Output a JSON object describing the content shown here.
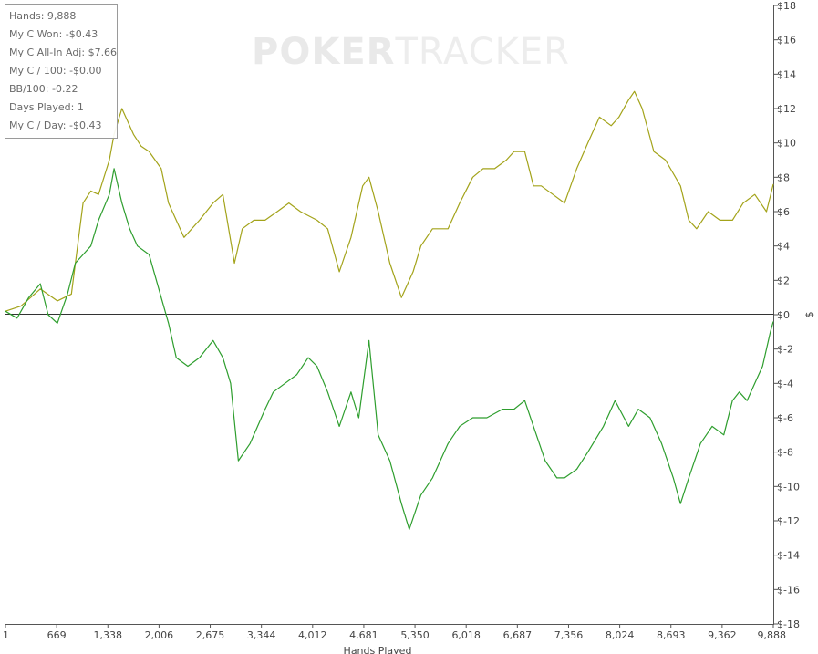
{
  "watermark": {
    "brand_left": "POKER",
    "brand_right": "TRACKER"
  },
  "stats": [
    "Hands: 9,888",
    "My C Won: -$0.43",
    "My C All-In Adj: $7.66",
    "My C / 100: -$0.00",
    "BB/100: -0.22",
    "Days Played: 1",
    "My C / Day: -$0.43"
  ],
  "chart_data": {
    "type": "line",
    "xlabel": "Hands Played",
    "ylabel": "$",
    "x_ticks": [
      "1",
      "669",
      "1,338",
      "2,006",
      "2,675",
      "3,344",
      "4,012",
      "4,681",
      "5,350",
      "6,018",
      "6,687",
      "7,356",
      "8,024",
      "8,693",
      "9,362",
      "9,888"
    ],
    "y_ticks": [
      "$18",
      "$16",
      "$14",
      "$12",
      "$10",
      "$8",
      "$6",
      "$4",
      "$2",
      "$0",
      "$-2",
      "$-4",
      "$-6",
      "$-8",
      "$-10",
      "$-12",
      "$-14",
      "$-16",
      "$-18"
    ],
    "xlim": [
      1,
      9888
    ],
    "ylim": [
      -18,
      18
    ],
    "grid": false,
    "series": [
      {
        "name": "My C All-In Adj",
        "color": "#a3a31a",
        "x": [
          1,
          200,
          450,
          669,
          850,
          1000,
          1100,
          1200,
          1338,
          1400,
          1500,
          1650,
          1750,
          1850,
          2006,
          2100,
          2300,
          2500,
          2675,
          2800,
          2950,
          3050,
          3200,
          3344,
          3500,
          3650,
          3800,
          4012,
          4150,
          4300,
          4450,
          4600,
          4681,
          4800,
          4950,
          5100,
          5250,
          5350,
          5500,
          5700,
          5850,
          6018,
          6150,
          6300,
          6450,
          6550,
          6687,
          6800,
          6900,
          7050,
          7200,
          7356,
          7500,
          7650,
          7800,
          7900,
          8024,
          8100,
          8200,
          8350,
          8500,
          8693,
          8800,
          8900,
          9050,
          9200,
          9362,
          9500,
          9650,
          9800,
          9888
        ],
        "y": [
          0.2,
          0.5,
          1.5,
          0.8,
          1.2,
          6.5,
          7.2,
          7.0,
          9.0,
          10.5,
          12.0,
          10.5,
          9.8,
          9.5,
          8.5,
          6.5,
          4.5,
          5.5,
          6.5,
          7.0,
          3.0,
          5.0,
          5.5,
          5.5,
          6.0,
          6.5,
          6.0,
          5.5,
          5.0,
          2.5,
          4.5,
          7.5,
          8.0,
          6.0,
          3.0,
          1.0,
          2.5,
          4.0,
          5.0,
          5.0,
          6.5,
          8.0,
          8.5,
          8.5,
          9.0,
          9.5,
          9.5,
          7.5,
          7.5,
          7.0,
          6.5,
          8.5,
          10.0,
          11.5,
          11.0,
          11.5,
          12.5,
          13.0,
          12.0,
          9.5,
          9.0,
          7.5,
          5.5,
          5.0,
          6.0,
          5.5,
          5.5,
          6.5,
          7.0,
          6.0,
          7.6
        ]
      },
      {
        "name": "My C Won",
        "color": "#2e9e2e",
        "x": [
          1,
          150,
          300,
          450,
          550,
          669,
          800,
          900,
          1000,
          1100,
          1200,
          1338,
          1400,
          1500,
          1600,
          1700,
          1850,
          2006,
          2100,
          2200,
          2350,
          2500,
          2675,
          2800,
          2900,
          3000,
          3150,
          3344,
          3450,
          3600,
          3750,
          3900,
          4012,
          4150,
          4300,
          4450,
          4550,
          4681,
          4800,
          4950,
          5100,
          5200,
          5350,
          5500,
          5700,
          5850,
          6018,
          6200,
          6400,
          6550,
          6687,
          6800,
          6950,
          7100,
          7200,
          7356,
          7500,
          7700,
          7850,
          8024,
          8150,
          8300,
          8450,
          8600,
          8693,
          8800,
          8950,
          9100,
          9250,
          9362,
          9450,
          9550,
          9650,
          9750,
          9850,
          9888
        ],
        "y": [
          0.2,
          -0.2,
          1.0,
          1.8,
          0.0,
          -0.5,
          1.2,
          3.0,
          3.5,
          4.0,
          5.5,
          7.0,
          8.5,
          6.5,
          5.0,
          4.0,
          3.5,
          1.0,
          -0.5,
          -2.5,
          -3.0,
          -2.5,
          -1.5,
          -2.5,
          -4.0,
          -8.5,
          -7.5,
          -5.5,
          -4.5,
          -4.0,
          -3.5,
          -2.5,
          -3.0,
          -4.5,
          -6.5,
          -4.5,
          -6.0,
          -1.5,
          -7.0,
          -8.5,
          -11.0,
          -12.5,
          -10.5,
          -9.5,
          -7.5,
          -6.5,
          -6.0,
          -6.0,
          -5.5,
          -5.5,
          -5.0,
          -6.5,
          -8.5,
          -9.5,
          -9.5,
          -9.0,
          -8.0,
          -6.5,
          -5.0,
          -6.5,
          -5.5,
          -6.0,
          -7.5,
          -9.5,
          -11.0,
          -9.5,
          -7.5,
          -6.5,
          -7.0,
          -5.0,
          -4.5,
          -5.0,
          -4.0,
          -3.0,
          -1.0,
          -0.4
        ]
      }
    ]
  }
}
